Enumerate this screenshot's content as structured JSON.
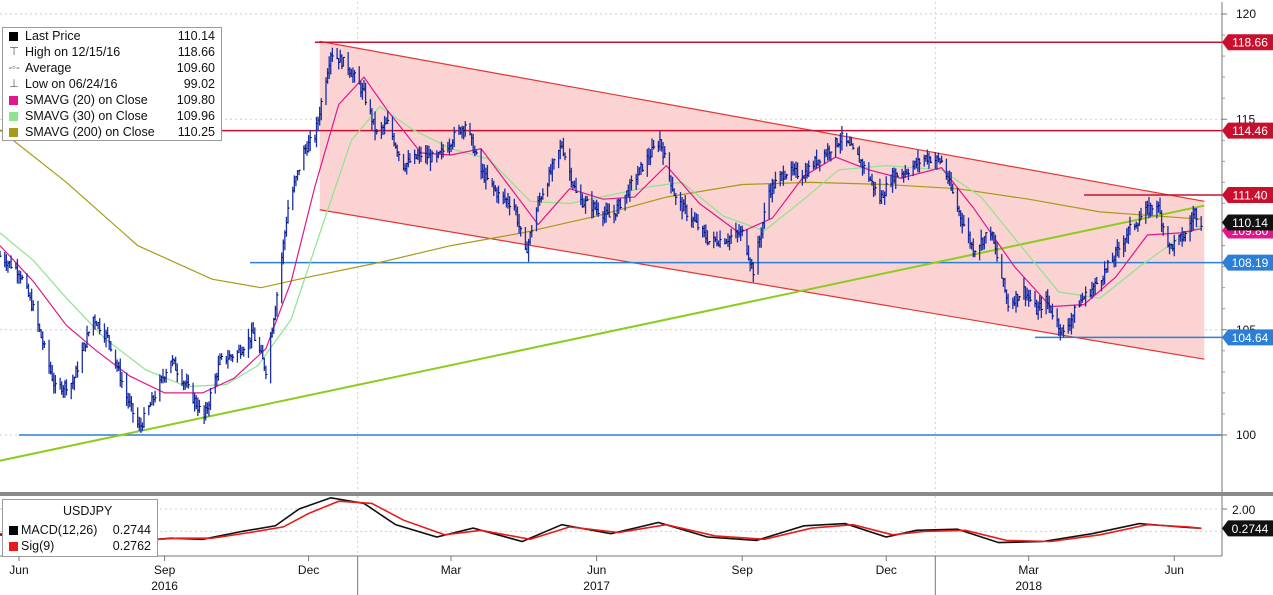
{
  "chart_data": {
    "type": "line",
    "instrument": "USDJPY",
    "x_axis": {
      "month_labels": [
        "Jun",
        "Sep",
        "Dec",
        "Mar",
        "Jun",
        "Sep",
        "Dec",
        "Mar",
        "Jun"
      ],
      "year_labels": [
        "2016",
        "2017",
        "2018"
      ]
    },
    "y_axis": {
      "ticks": [
        "120",
        "115",
        "105",
        "100"
      ],
      "range": [
        97.5,
        121
      ]
    },
    "legend": [
      {
        "label": "Last Price",
        "value": "110.14",
        "color": "#000000"
      },
      {
        "label": "High on 12/15/16",
        "value": "118.66",
        "color": "#555555"
      },
      {
        "label": "Average",
        "value": "109.60",
        "color": "#555555"
      },
      {
        "label": "Low on 06/24/16",
        "value": "99.02",
        "color": "#555555"
      },
      {
        "label": "SMAVG (20) on Close",
        "value": "109.80",
        "color": "#e0188c"
      },
      {
        "label": "SMAVG (30) on Close",
        "value": "109.96",
        "color": "#8fe38f"
      },
      {
        "label": "SMAVG (200) on Close",
        "value": "110.25",
        "color": "#a89a18"
      }
    ],
    "price_tags": [
      {
        "value": "118.66",
        "color": "#c8102e"
      },
      {
        "value": "114.46",
        "color": "#c8102e"
      },
      {
        "value": "111.40",
        "color": "#c8102e"
      },
      {
        "value": "110.14",
        "color": "#111111"
      },
      {
        "value": "109.80",
        "color": "#e0188c"
      },
      {
        "value": "108.19",
        "color": "#2b7fd6"
      },
      {
        "value": "104.64",
        "color": "#2b7fd6"
      }
    ],
    "horizontal_lines": [
      {
        "y": 118.66,
        "color": "#c8102e",
        "x_start": "2016-12-05"
      },
      {
        "y": 114.46,
        "color": "#c8102e",
        "x_start": "2016-05-15"
      },
      {
        "y": 111.4,
        "color": "#c8102e",
        "x_start": "2018-04-05"
      },
      {
        "y": 108.19,
        "color": "#2b7fd6",
        "x_start": "2016-10-25"
      },
      {
        "y": 104.64,
        "color": "#2b7fd6",
        "x_start": "2018-03-05"
      },
      {
        "y": 100.0,
        "color": "#2b7fd6",
        "x_start": "2016-06-01"
      }
    ],
    "channel": {
      "color": "#f4a0a0",
      "upper": [
        [
          "2016-12-08",
          118.7
        ],
        [
          "2018-06-20",
          111.1
        ]
      ],
      "lower": [
        [
          "2016-12-08",
          110.7
        ],
        [
          "2018-06-20",
          103.6
        ]
      ]
    },
    "trendline": {
      "color": "#8ccc1e",
      "points": [
        [
          "2016-05-15",
          98.7
        ],
        [
          "2018-06-20",
          110.9
        ]
      ]
    },
    "series": [
      {
        "name": "Last Price",
        "color": "#1a2fa8",
        "points": [
          [
            "2016-05-20",
            108.5
          ],
          [
            "2016-06-01",
            107.8
          ],
          [
            "2016-06-10",
            106.0
          ],
          [
            "2016-06-24",
            102.2
          ],
          [
            "2016-07-05",
            102.5
          ],
          [
            "2016-07-18",
            105.6
          ],
          [
            "2016-07-28",
            104.5
          ],
          [
            "2016-08-08",
            101.8
          ],
          [
            "2016-08-16",
            100.3
          ],
          [
            "2016-08-26",
            101.9
          ],
          [
            "2016-09-05",
            103.6
          ],
          [
            "2016-09-15",
            102.3
          ],
          [
            "2016-09-26",
            100.8
          ],
          [
            "2016-10-06",
            103.5
          ],
          [
            "2016-10-17",
            103.9
          ],
          [
            "2016-10-27",
            104.8
          ],
          [
            "2016-11-04",
            103.1
          ],
          [
            "2016-11-11",
            106.7
          ],
          [
            "2016-11-18",
            110.8
          ],
          [
            "2016-11-28",
            113.5
          ],
          [
            "2016-12-05",
            114.2
          ],
          [
            "2016-12-15",
            118.2
          ],
          [
            "2016-12-26",
            117.5
          ],
          [
            "2017-01-05",
            116.2
          ],
          [
            "2017-01-13",
            114.3
          ],
          [
            "2017-01-20",
            114.8
          ],
          [
            "2017-01-30",
            112.8
          ],
          [
            "2017-02-10",
            113.3
          ],
          [
            "2017-02-20",
            113.1
          ],
          [
            "2017-03-02",
            114.1
          ],
          [
            "2017-03-10",
            114.8
          ],
          [
            "2017-03-20",
            112.5
          ],
          [
            "2017-03-31",
            111.4
          ],
          [
            "2017-04-10",
            110.9
          ],
          [
            "2017-04-17",
            108.6
          ],
          [
            "2017-04-25",
            111.0
          ],
          [
            "2017-05-10",
            113.8
          ],
          [
            "2017-05-20",
            111.2
          ],
          [
            "2017-05-31",
            110.8
          ],
          [
            "2017-06-10",
            110.3
          ],
          [
            "2017-06-20",
            111.5
          ],
          [
            "2017-07-01",
            112.9
          ],
          [
            "2017-07-11",
            114.0
          ],
          [
            "2017-07-21",
            111.2
          ],
          [
            "2017-07-31",
            110.3
          ],
          [
            "2017-08-11",
            109.2
          ],
          [
            "2017-08-21",
            109.3
          ],
          [
            "2017-09-01",
            109.6
          ],
          [
            "2017-09-08",
            107.8
          ],
          [
            "2017-09-18",
            111.6
          ],
          [
            "2017-09-28",
            112.5
          ],
          [
            "2017-10-10",
            112.4
          ],
          [
            "2017-10-20",
            113.2
          ],
          [
            "2017-11-03",
            114.1
          ],
          [
            "2017-11-15",
            113.0
          ],
          [
            "2017-11-27",
            111.2
          ],
          [
            "2017-12-05",
            112.3
          ],
          [
            "2017-12-15",
            112.6
          ],
          [
            "2017-12-26",
            113.2
          ],
          [
            "2018-01-05",
            113.0
          ],
          [
            "2018-01-15",
            110.8
          ],
          [
            "2018-01-25",
            108.8
          ],
          [
            "2018-02-05",
            109.7
          ],
          [
            "2018-02-16",
            106.2
          ],
          [
            "2018-02-26",
            106.9
          ],
          [
            "2018-03-06",
            105.9
          ],
          [
            "2018-03-12",
            106.4
          ],
          [
            "2018-03-23",
            104.8
          ],
          [
            "2018-04-02",
            106.3
          ],
          [
            "2018-04-12",
            107.1
          ],
          [
            "2018-04-23",
            108.3
          ],
          [
            "2018-05-03",
            109.7
          ],
          [
            "2018-05-14",
            110.6
          ],
          [
            "2018-05-21",
            111.0
          ],
          [
            "2018-05-29",
            108.9
          ],
          [
            "2018-06-08",
            109.5
          ],
          [
            "2018-06-14",
            110.6
          ],
          [
            "2018-06-18",
            110.14
          ]
        ]
      },
      {
        "name": "SMAVG (20) on Close",
        "color": "#e0188c",
        "points": [
          [
            "2016-05-20",
            109.0
          ],
          [
            "2016-06-10",
            107.3
          ],
          [
            "2016-07-01",
            105.2
          ],
          [
            "2016-07-20",
            104.0
          ],
          [
            "2016-08-10",
            102.8
          ],
          [
            "2016-09-01",
            102.0
          ],
          [
            "2016-09-25",
            102.0
          ],
          [
            "2016-10-15",
            102.7
          ],
          [
            "2016-11-04",
            104.1
          ],
          [
            "2016-11-20",
            107.3
          ],
          [
            "2016-12-05",
            111.8
          ],
          [
            "2016-12-20",
            115.7
          ],
          [
            "2017-01-05",
            117.0
          ],
          [
            "2017-01-20",
            115.4
          ],
          [
            "2017-02-10",
            113.4
          ],
          [
            "2017-03-01",
            113.3
          ],
          [
            "2017-03-20",
            113.6
          ],
          [
            "2017-04-10",
            111.5
          ],
          [
            "2017-04-25",
            110.0
          ],
          [
            "2017-05-15",
            111.7
          ],
          [
            "2017-06-05",
            111.2
          ],
          [
            "2017-06-25",
            111.3
          ],
          [
            "2017-07-15",
            112.8
          ],
          [
            "2017-08-05",
            111.0
          ],
          [
            "2017-08-30",
            109.6
          ],
          [
            "2017-09-20",
            110.3
          ],
          [
            "2017-10-10",
            112.3
          ],
          [
            "2017-10-30",
            113.2
          ],
          [
            "2017-11-20",
            112.6
          ],
          [
            "2017-12-10",
            112.2
          ],
          [
            "2018-01-05",
            112.7
          ],
          [
            "2018-01-25",
            110.8
          ],
          [
            "2018-02-20",
            108.0
          ],
          [
            "2018-03-15",
            106.1
          ],
          [
            "2018-04-05",
            106.2
          ],
          [
            "2018-04-25",
            107.5
          ],
          [
            "2018-05-15",
            109.5
          ],
          [
            "2018-06-05",
            109.6
          ],
          [
            "2018-06-18",
            109.8
          ]
        ]
      },
      {
        "name": "SMAVG (30) on Close",
        "color": "#8fe38f",
        "points": [
          [
            "2016-05-20",
            109.6
          ],
          [
            "2016-06-10",
            108.3
          ],
          [
            "2016-07-01",
            106.5
          ],
          [
            "2016-07-25",
            104.6
          ],
          [
            "2016-08-20",
            103.1
          ],
          [
            "2016-09-15",
            102.3
          ],
          [
            "2016-10-10",
            102.4
          ],
          [
            "2016-10-30",
            103.3
          ],
          [
            "2016-11-20",
            105.5
          ],
          [
            "2016-12-10",
            110.0
          ],
          [
            "2016-12-28",
            114.0
          ],
          [
            "2017-01-15",
            115.6
          ],
          [
            "2017-02-05",
            114.5
          ],
          [
            "2017-03-01",
            113.6
          ],
          [
            "2017-03-25",
            113.1
          ],
          [
            "2017-04-20",
            111.1
          ],
          [
            "2017-05-15",
            111.0
          ],
          [
            "2017-06-10",
            111.4
          ],
          [
            "2017-07-05",
            111.8
          ],
          [
            "2017-07-25",
            112.0
          ],
          [
            "2017-08-20",
            110.4
          ],
          [
            "2017-09-15",
            109.7
          ],
          [
            "2017-10-10",
            111.2
          ],
          [
            "2017-11-01",
            112.6
          ],
          [
            "2017-12-01",
            112.8
          ],
          [
            "2018-01-05",
            112.6
          ],
          [
            "2018-01-30",
            111.3
          ],
          [
            "2018-02-25",
            108.9
          ],
          [
            "2018-03-20",
            106.8
          ],
          [
            "2018-04-15",
            106.5
          ],
          [
            "2018-05-10",
            108.0
          ],
          [
            "2018-06-05",
            109.4
          ],
          [
            "2018-06-18",
            109.96
          ]
        ]
      },
      {
        "name": "SMAVG (200) on Close",
        "color": "#a89a18",
        "points": [
          [
            "2016-05-20",
            114.5
          ],
          [
            "2016-07-01",
            112.0
          ],
          [
            "2016-08-15",
            109.0
          ],
          [
            "2016-10-01",
            107.4
          ],
          [
            "2016-11-01",
            107.0
          ],
          [
            "2016-12-01",
            107.5
          ],
          [
            "2017-01-15",
            108.2
          ],
          [
            "2017-03-01",
            109.0
          ],
          [
            "2017-04-15",
            109.6
          ],
          [
            "2017-06-01",
            110.4
          ],
          [
            "2017-07-15",
            111.3
          ],
          [
            "2017-09-01",
            111.9
          ],
          [
            "2017-10-15",
            112.0
          ],
          [
            "2017-12-01",
            111.9
          ],
          [
            "2018-01-15",
            111.7
          ],
          [
            "2018-03-01",
            111.2
          ],
          [
            "2018-04-15",
            110.6
          ],
          [
            "2018-06-18",
            110.25
          ]
        ]
      }
    ],
    "macd_panel": {
      "title": "USDJPY",
      "y_tick": "2.00",
      "tag": "0.2744",
      "legend": [
        {
          "label": "MACD(12,26)",
          "value": "0.2744",
          "color": "#000000"
        },
        {
          "label": "Sig(9)",
          "value": "0.2762",
          "color": "#e81c1c"
        }
      ],
      "macd": [
        [
          "2016-05-20",
          -0.3
        ],
        [
          "2016-06-10",
          -0.6
        ],
        [
          "2016-07-10",
          -0.3
        ],
        [
          "2016-08-10",
          -0.9
        ],
        [
          "2016-09-05",
          -0.6
        ],
        [
          "2016-09-25",
          -0.7
        ],
        [
          "2016-10-20",
          0.0
        ],
        [
          "2016-11-10",
          0.5
        ],
        [
          "2016-11-25",
          2.0
        ],
        [
          "2016-12-15",
          3.0
        ],
        [
          "2017-01-05",
          2.5
        ],
        [
          "2017-01-25",
          0.6
        ],
        [
          "2017-02-20",
          -0.5
        ],
        [
          "2017-03-15",
          0.3
        ],
        [
          "2017-04-15",
          -0.9
        ],
        [
          "2017-05-10",
          0.6
        ],
        [
          "2017-06-10",
          -0.2
        ],
        [
          "2017-07-10",
          0.8
        ],
        [
          "2017-08-10",
          -0.5
        ],
        [
          "2017-09-10",
          -0.8
        ],
        [
          "2017-10-10",
          0.5
        ],
        [
          "2017-11-05",
          0.7
        ],
        [
          "2017-12-01",
          -0.5
        ],
        [
          "2017-12-20",
          0.1
        ],
        [
          "2018-01-15",
          0.2
        ],
        [
          "2018-02-10",
          -1.0
        ],
        [
          "2018-03-10",
          -0.9
        ],
        [
          "2018-04-10",
          -0.2
        ],
        [
          "2018-05-10",
          0.7
        ],
        [
          "2018-06-05",
          0.4
        ],
        [
          "2018-06-18",
          0.2744
        ]
      ],
      "signal": [
        [
          "2016-05-20",
          -0.2
        ],
        [
          "2016-06-15",
          -0.5
        ],
        [
          "2016-07-15",
          -0.4
        ],
        [
          "2016-08-15",
          -0.8
        ],
        [
          "2016-09-10",
          -0.6
        ],
        [
          "2016-10-01",
          -0.6
        ],
        [
          "2016-10-25",
          -0.1
        ],
        [
          "2016-11-15",
          0.4
        ],
        [
          "2016-12-01",
          1.6
        ],
        [
          "2016-12-20",
          2.7
        ],
        [
          "2017-01-10",
          2.5
        ],
        [
          "2017-01-30",
          1.0
        ],
        [
          "2017-02-25",
          -0.3
        ],
        [
          "2017-03-20",
          0.1
        ],
        [
          "2017-04-20",
          -0.7
        ],
        [
          "2017-05-15",
          0.4
        ],
        [
          "2017-06-15",
          -0.1
        ],
        [
          "2017-07-15",
          0.6
        ],
        [
          "2017-08-15",
          -0.4
        ],
        [
          "2017-09-15",
          -0.7
        ],
        [
          "2017-10-15",
          0.3
        ],
        [
          "2017-11-10",
          0.6
        ],
        [
          "2017-12-05",
          -0.3
        ],
        [
          "2017-12-25",
          0.0
        ],
        [
          "2018-01-20",
          0.1
        ],
        [
          "2018-02-15",
          -0.8
        ],
        [
          "2018-03-15",
          -0.9
        ],
        [
          "2018-04-15",
          -0.3
        ],
        [
          "2018-05-15",
          0.6
        ],
        [
          "2018-06-10",
          0.4
        ],
        [
          "2018-06-18",
          0.2762
        ]
      ]
    }
  }
}
